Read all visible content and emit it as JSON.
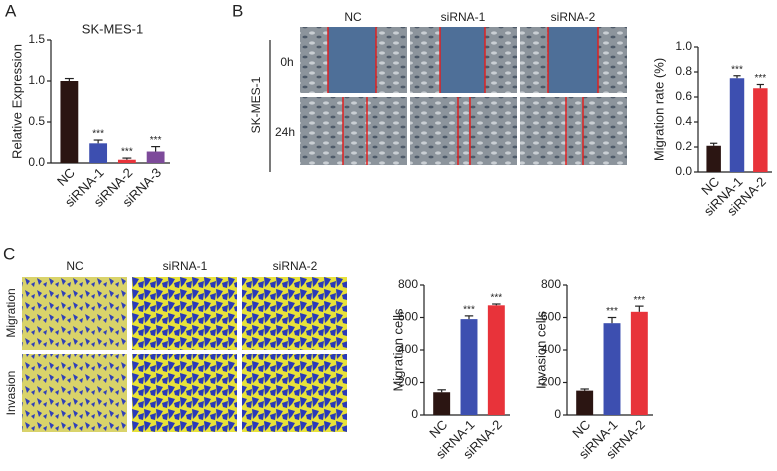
{
  "panels": [
    "A",
    "B",
    "C"
  ],
  "images": {
    "B": {
      "columns": [
        "NC",
        "siRNA-1",
        "siRNA-2"
      ],
      "rows": [
        "0h",
        "24h"
      ],
      "side_label": "SK-MES-1"
    },
    "C": {
      "columns": [
        "NC",
        "siRNA-1",
        "siRNA-2"
      ],
      "rows": [
        "Migration",
        "Invasion"
      ]
    }
  },
  "chart_data": [
    {
      "type": "bar",
      "title": "SK-MES-1",
      "ylabel": "Relative Expression",
      "categories": [
        "NC",
        "siRNA-1",
        "siRNA-2",
        "siRNA-3"
      ],
      "values": [
        1.0,
        0.24,
        0.04,
        0.14
      ],
      "errors": [
        0.03,
        0.04,
        0.02,
        0.06
      ],
      "annotations": [
        null,
        "***",
        "***",
        "***"
      ],
      "colors": [
        "#2b1512",
        "#3d4fb0",
        "#e8333a",
        "#7d4a9a"
      ],
      "ylim": [
        0,
        1.5
      ],
      "yticks": [
        {
          "value": 0,
          "label": "0.0"
        },
        0.5,
        {
          "value": 1,
          "label": "1.0"
        },
        1.5
      ]
    },
    {
      "type": "bar",
      "ylabel": "Migration rate (%)",
      "categories": [
        "NC",
        "siRNA-1",
        "siRNA-2"
      ],
      "values": [
        0.21,
        0.75,
        0.67
      ],
      "errors": [
        0.02,
        0.02,
        0.03
      ],
      "annotations": [
        null,
        "***",
        "***"
      ],
      "colors": [
        "#2b1512",
        "#3d4fb0",
        "#e8333a"
      ],
      "ylim": [
        0,
        1
      ],
      "yticks": [
        {
          "value": 0,
          "label": "0.0"
        },
        0.2,
        0.4,
        0.6,
        0.8,
        {
          "value": 1,
          "label": "1.0"
        }
      ]
    },
    {
      "type": "bar",
      "ylabel": "Migration cells",
      "categories": [
        "NC",
        "siRNA-1",
        "siRNA-2"
      ],
      "values": [
        140,
        590,
        675
      ],
      "errors": [
        15,
        20,
        8
      ],
      "annotations": [
        null,
        "***",
        "***"
      ],
      "colors": [
        "#2b1512",
        "#3d4fb0",
        "#e8333a"
      ],
      "ylim": [
        0,
        800
      ],
      "yticks": [
        0,
        200,
        400,
        600,
        800
      ]
    },
    {
      "type": "bar",
      "ylabel": "Invasion cells",
      "categories": [
        "NC",
        "siRNA-1",
        "siRNA-2"
      ],
      "values": [
        150,
        565,
        635
      ],
      "errors": [
        10,
        35,
        35
      ],
      "annotations": [
        null,
        "***",
        "***"
      ],
      "colors": [
        "#2b1512",
        "#3d4fb0",
        "#e8333a"
      ],
      "ylim": [
        0,
        800
      ],
      "yticks": [
        0,
        200,
        400,
        600,
        800
      ]
    }
  ]
}
